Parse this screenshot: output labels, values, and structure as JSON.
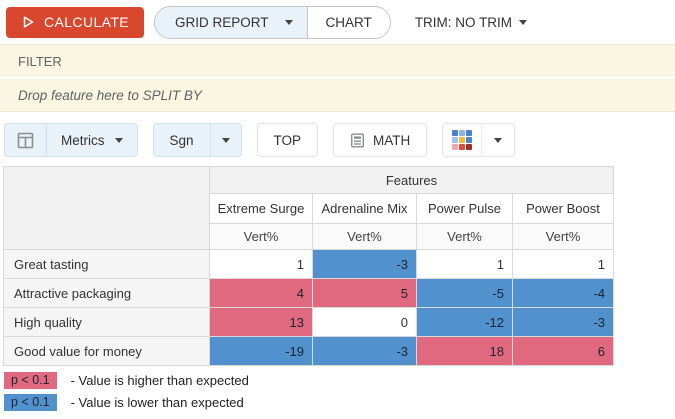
{
  "toolbar": {
    "calculate_label": "CALCULATE",
    "view_switch": {
      "grid_label": "GRID REPORT",
      "chart_label": "CHART"
    },
    "trim_label": "TRIM: NO TRIM"
  },
  "filter_bar": {
    "label": "FILTER"
  },
  "split_bar": {
    "placeholder": "Drop feature here to SPLIT BY"
  },
  "controls": {
    "metrics_label": "Metrics",
    "sgn_label": "Sgn",
    "top_label": "TOP",
    "math_label": "MATH"
  },
  "table": {
    "group_header": "Features",
    "columns": [
      "Extreme Surge",
      "Adrenaline Mix",
      "Power Pulse",
      "Power Boost"
    ],
    "metric_label": "Vert%",
    "rows": [
      {
        "label": "Great tasting",
        "values": [
          "1",
          "-3",
          "1",
          "1"
        ],
        "sig": [
          "none",
          "lower",
          "none",
          "none"
        ]
      },
      {
        "label": "Attractive packaging",
        "values": [
          "4",
          "5",
          "-5",
          "-4"
        ],
        "sig": [
          "higher",
          "higher",
          "lower",
          "lower"
        ]
      },
      {
        "label": "High quality",
        "values": [
          "13",
          "0",
          "-12",
          "-3"
        ],
        "sig": [
          "higher",
          "none",
          "lower",
          "lower"
        ]
      },
      {
        "label": "Good value for money",
        "values": [
          "-19",
          "-3",
          "18",
          "6"
        ],
        "sig": [
          "lower",
          "lower",
          "higher",
          "higher"
        ]
      }
    ]
  },
  "legend": {
    "items": [
      {
        "chip": "p < 0.1",
        "text": "- Value is higher than expected",
        "type": "higher"
      },
      {
        "chip": "p < 0.1",
        "text": "- Value is lower than expected",
        "type": "lower"
      }
    ]
  },
  "colors": {
    "accent": "#d9472f",
    "higher": "#e06980",
    "lower": "#5191cd",
    "button_blue_bg": "#e9f1f9",
    "bar_bg": "#fbf6e2",
    "palette_icon_swatches": [
      "#4b7fd0",
      "#8ab4e8",
      "#4b7fd0",
      "#9cc3ec",
      "#f0bc3e",
      "#4b7fd0",
      "#f0a2b0",
      "#d94f3d",
      "#9e3120"
    ]
  }
}
